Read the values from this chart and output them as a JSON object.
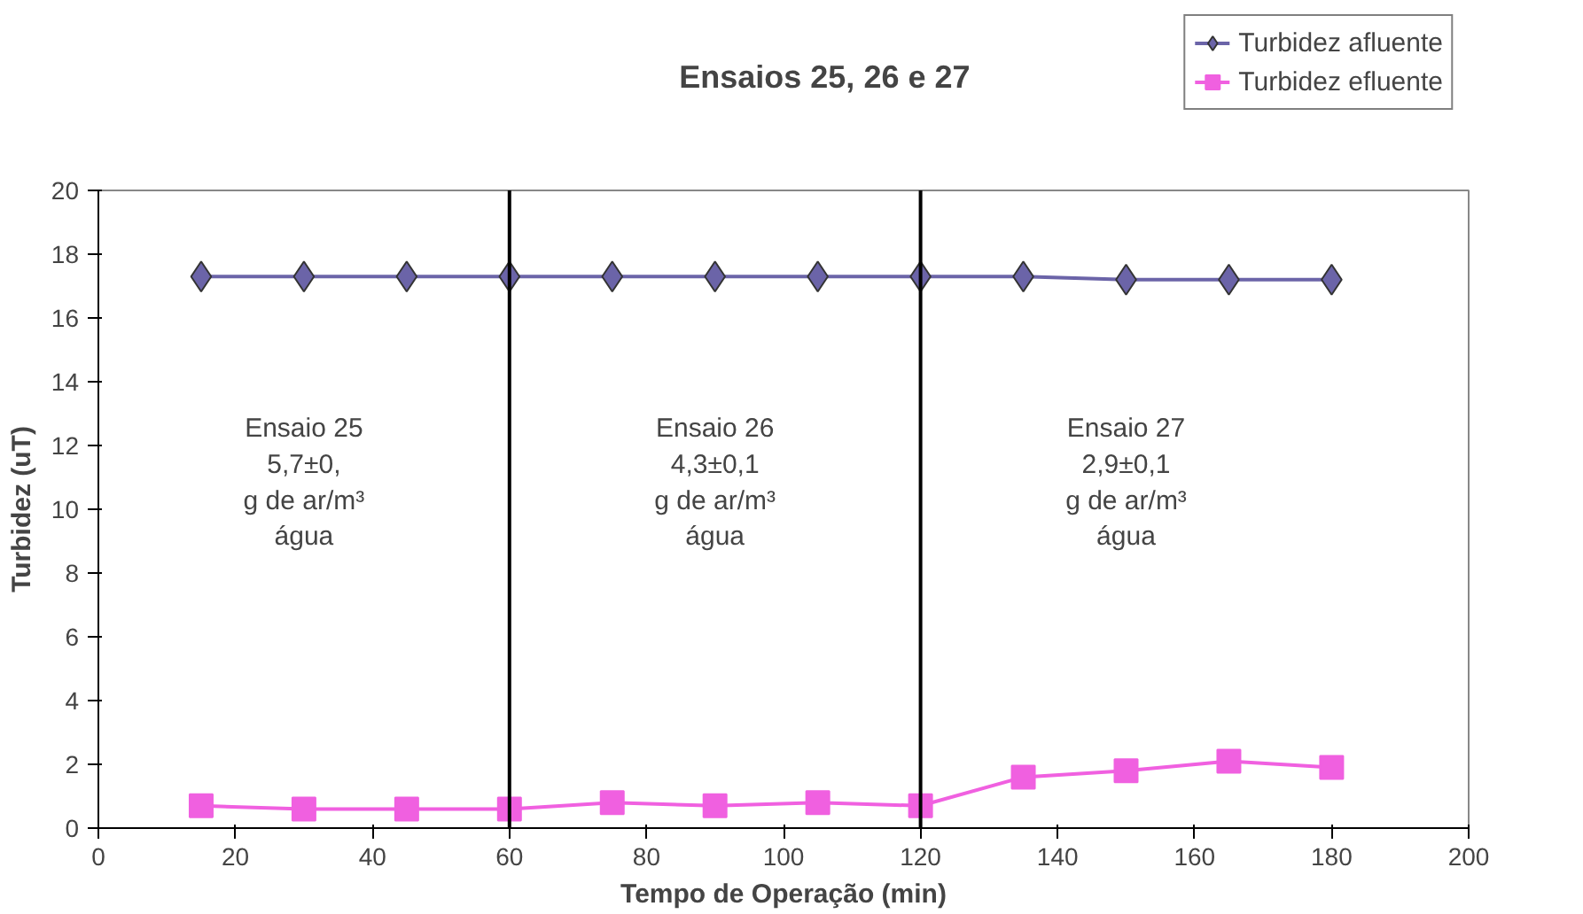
{
  "chart_data": {
    "type": "line",
    "title": "Ensaios 25, 26 e 27",
    "xlabel": "Tempo de Operação (min)",
    "ylabel": "Turbidez (uT)",
    "x": [
      15,
      30,
      45,
      60,
      75,
      90,
      105,
      120,
      135,
      150,
      165,
      180
    ],
    "series": [
      {
        "name": "Turbidez afluente",
        "color": "#6b64a8",
        "marker": "diamond",
        "values": [
          17.3,
          17.3,
          17.3,
          17.3,
          17.3,
          17.3,
          17.3,
          17.3,
          17.3,
          17.2,
          17.2,
          17.2
        ]
      },
      {
        "name": "Turbidez efluente",
        "color": "#f060e0",
        "marker": "square",
        "values": [
          0.7,
          0.6,
          0.6,
          0.6,
          0.8,
          0.7,
          0.8,
          0.7,
          1.6,
          1.8,
          2.1,
          1.9
        ]
      }
    ],
    "xlim": [
      0,
      200
    ],
    "xticks": [
      0,
      20,
      40,
      60,
      80,
      100,
      120,
      140,
      160,
      180,
      200
    ],
    "ylim": [
      0,
      20
    ],
    "yticks": [
      0,
      2,
      4,
      6,
      8,
      10,
      12,
      14,
      16,
      18,
      20
    ],
    "grid": false,
    "legend": "top right",
    "ref_lines": [
      {
        "axis": "x",
        "value": 60,
        "label": null,
        "color": "#000000"
      },
      {
        "axis": "x",
        "value": 120,
        "label": null,
        "color": "#000000"
      }
    ],
    "annotations": [
      "Ensaio 25\n5,7±0,\ng de ar/m³\nágua",
      "Ensaio 26\n4,3±0,1\ng de ar/m³\nágua",
      "Ensaio 27\n2,9±0,1\ng de ar/m³\nágua"
    ]
  }
}
